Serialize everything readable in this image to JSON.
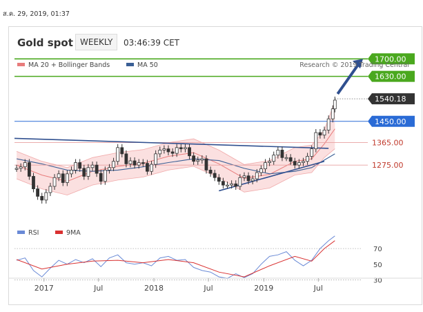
{
  "header": {
    "timestamp": "ส.ค. 29, 2019, 01:37",
    "title": "Gold spot",
    "frequency": "WEEKLY",
    "time": "03:46:39 CET",
    "credit": "Research © 2019 Trading Central"
  },
  "colors": {
    "price": "#333333",
    "bollinger": "#e87c7c",
    "bollinger_fill": "#f9d6d6",
    "ma50": "#3a5f95",
    "trendline": "#2f4f8f",
    "target_green": "#4aa81e",
    "pivot_blue": "#2a6bd6",
    "support_red": "#c0392b",
    "last_price_bg": "#333333",
    "rsi": "#6a8ad6",
    "rsi_ma": "#d93030"
  },
  "chart_data": [
    {
      "type": "line",
      "title": "",
      "legend": [
        "MA 20 + Bollinger Bands",
        "MA 50"
      ],
      "legend_position": "top-left",
      "x_ticks": [
        "2017",
        "Jul",
        "2018",
        "Jul",
        "2019",
        "Jul"
      ],
      "x_tick_dates": [
        "2017-01-01",
        "2017-07-01",
        "2018-01-01",
        "2018-07-01",
        "2019-01-01",
        "2019-07-01"
      ],
      "x_range": [
        "2016-09-25",
        "2019-11-24"
      ],
      "ylim": [
        1060,
        1745
      ],
      "grid": false,
      "series": [
        {
          "name": "Gold spot",
          "x": [
            "2016-10-02",
            "2016-10-16",
            "2016-10-30",
            "2016-11-13",
            "2016-11-27",
            "2016-12-11",
            "2016-12-25",
            "2017-01-08",
            "2017-01-22",
            "2017-02-05",
            "2017-02-19",
            "2017-03-05",
            "2017-03-19",
            "2017-04-02",
            "2017-04-16",
            "2017-04-30",
            "2017-05-14",
            "2017-05-28",
            "2017-06-11",
            "2017-06-25",
            "2017-07-09",
            "2017-07-23",
            "2017-08-06",
            "2017-08-20",
            "2017-09-03",
            "2017-09-17",
            "2017-10-01",
            "2017-10-15",
            "2017-10-29",
            "2017-11-12",
            "2017-11-26",
            "2017-12-10",
            "2017-12-24",
            "2018-01-07",
            "2018-01-21",
            "2018-02-04",
            "2018-02-18",
            "2018-03-04",
            "2018-03-18",
            "2018-04-01",
            "2018-04-15",
            "2018-04-29",
            "2018-05-13",
            "2018-05-27",
            "2018-06-10",
            "2018-06-24",
            "2018-07-08",
            "2018-07-22",
            "2018-08-05",
            "2018-08-19",
            "2018-09-02",
            "2018-09-16",
            "2018-09-30",
            "2018-10-14",
            "2018-10-28",
            "2018-11-11",
            "2018-11-25",
            "2018-12-09",
            "2018-12-23",
            "2019-01-06",
            "2019-01-20",
            "2019-02-03",
            "2019-02-17",
            "2019-03-03",
            "2019-03-17",
            "2019-03-31",
            "2019-04-14",
            "2019-04-28",
            "2019-05-12",
            "2019-05-26",
            "2019-06-09",
            "2019-06-23",
            "2019-07-07",
            "2019-07-21",
            "2019-08-04",
            "2019-08-18",
            "2019-08-25"
          ],
          "close": [
            1262,
            1268,
            1285,
            1230,
            1180,
            1150,
            1135,
            1165,
            1190,
            1225,
            1240,
            1205,
            1240,
            1255,
            1285,
            1262,
            1230,
            1265,
            1275,
            1242,
            1210,
            1255,
            1265,
            1290,
            1345,
            1320,
            1280,
            1292,
            1275,
            1285,
            1282,
            1250,
            1278,
            1320,
            1335,
            1340,
            1328,
            1322,
            1345,
            1340,
            1345,
            1312,
            1290,
            1295,
            1300,
            1255,
            1242,
            1225,
            1210,
            1195,
            1195,
            1200,
            1190,
            1225,
            1232,
            1212,
            1220,
            1245,
            1260,
            1285,
            1290,
            1315,
            1335,
            1305,
            1305,
            1290,
            1275,
            1285,
            1290,
            1310,
            1340,
            1405,
            1395,
            1415,
            1460,
            1500,
            1535
          ]
        },
        {
          "name": "MA 20",
          "x": [
            "2016-10-02",
            "2016-12-25",
            "2017-03-19",
            "2017-06-11",
            "2017-09-03",
            "2017-11-26",
            "2018-02-18",
            "2018-05-13",
            "2018-08-05",
            "2018-10-28",
            "2019-01-20",
            "2019-04-14",
            "2019-06-09",
            "2019-07-21",
            "2019-08-25"
          ],
          "values": [
            1275,
            1235,
            1210,
            1250,
            1270,
            1282,
            1310,
            1325,
            1280,
            1222,
            1238,
            1290,
            1300,
            1360,
            1420
          ]
        },
        {
          "name": "MA 50",
          "x": [
            "2016-10-02",
            "2016-12-25",
            "2017-03-19",
            "2017-06-11",
            "2017-09-03",
            "2017-11-26",
            "2018-02-18",
            "2018-05-13",
            "2018-08-05",
            "2018-10-28",
            "2019-01-20",
            "2019-04-14",
            "2019-06-09",
            "2019-07-21",
            "2019-08-25"
          ],
          "values": [
            1300,
            1280,
            1255,
            1250,
            1255,
            1268,
            1285,
            1300,
            1293,
            1262,
            1240,
            1250,
            1265,
            1295,
            1320
          ]
        }
      ],
      "levels": [
        {
          "label": "1700.00",
          "value": 1700,
          "style": "target"
        },
        {
          "label": "1630.00",
          "value": 1630,
          "style": "target"
        },
        {
          "label": "1540.18",
          "value": 1540.18,
          "style": "last"
        },
        {
          "label": "1450.00",
          "value": 1450,
          "style": "pivot"
        },
        {
          "label": "1365.00",
          "value": 1365,
          "style": "support"
        },
        {
          "label": "1275.00",
          "value": 1275,
          "style": "support"
        }
      ]
    },
    {
      "type": "line",
      "title": "",
      "legend": [
        "RSI",
        "9MA"
      ],
      "legend_position": "top-left",
      "y_ticks": [
        "70",
        "50",
        "30"
      ],
      "ylim": [
        20,
        92
      ],
      "grid": false,
      "series": [
        {
          "name": "RSI",
          "x": [
            "2016-10-02",
            "2016-10-30",
            "2016-11-27",
            "2016-12-25",
            "2017-01-22",
            "2017-02-19",
            "2017-03-19",
            "2017-04-16",
            "2017-05-14",
            "2017-06-11",
            "2017-07-09",
            "2017-08-06",
            "2017-09-03",
            "2017-10-01",
            "2017-10-29",
            "2017-11-26",
            "2017-12-24",
            "2018-01-21",
            "2018-02-18",
            "2018-03-18",
            "2018-04-15",
            "2018-05-13",
            "2018-06-10",
            "2018-07-08",
            "2018-08-05",
            "2018-09-02",
            "2018-09-30",
            "2018-10-28",
            "2018-11-25",
            "2018-12-23",
            "2019-01-20",
            "2019-02-17",
            "2019-03-17",
            "2019-04-14",
            "2019-05-12",
            "2019-06-09",
            "2019-07-07",
            "2019-08-04",
            "2019-08-25"
          ],
          "values": [
            55,
            58,
            42,
            34,
            45,
            55,
            50,
            56,
            52,
            57,
            47,
            58,
            62,
            52,
            50,
            52,
            48,
            58,
            60,
            55,
            56,
            46,
            42,
            40,
            34,
            32,
            38,
            33,
            38,
            50,
            60,
            62,
            66,
            55,
            48,
            55,
            70,
            80,
            86
          ]
        },
        {
          "name": "9MA",
          "x": [
            "2016-10-02",
            "2016-12-25",
            "2017-03-19",
            "2017-06-11",
            "2017-09-03",
            "2017-11-26",
            "2018-02-18",
            "2018-05-13",
            "2018-08-05",
            "2018-10-28",
            "2019-01-20",
            "2019-04-14",
            "2019-06-09",
            "2019-07-21",
            "2019-08-25"
          ],
          "values": [
            56,
            44,
            50,
            54,
            55,
            52,
            56,
            52,
            40,
            34,
            48,
            60,
            54,
            70,
            80
          ]
        }
      ]
    }
  ]
}
